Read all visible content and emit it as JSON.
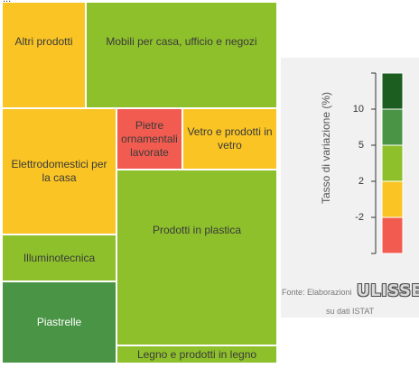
{
  "chart_data": {
    "type": "treemap",
    "legend": {
      "title": "Tasso di variazione (%)",
      "ticks": [
        "10",
        "5",
        "2",
        "-2"
      ],
      "bands": [
        {
          "color": "#1b5e20"
        },
        {
          "color": "#4a9445"
        },
        {
          "color": "#8ec02c"
        },
        {
          "color": "#f9c424"
        },
        {
          "color": "#f25c50"
        }
      ]
    },
    "tiles": [
      {
        "label": "Altri prodotti",
        "color": "#f9c424"
      },
      {
        "label": "Mobili per casa, ufficio e negozi",
        "color": "#8ec02c"
      },
      {
        "label": "Elettrodomestici per la casa",
        "color": "#f9c424"
      },
      {
        "label": "Pietre ornamentali lavorate",
        "color": "#f25c50"
      },
      {
        "label": "Vetro e prodotti in vetro",
        "color": "#f9c424"
      },
      {
        "label": "Prodotti in plastica",
        "color": "#8ec02c"
      },
      {
        "label": "Illuminotecnica",
        "color": "#8ec02c"
      },
      {
        "label": "Piastrelle",
        "color": "#4a9445"
      },
      {
        "label": "Legno e prodotti in legno",
        "color": "#8ec02c"
      }
    ]
  },
  "top_cut_text": "...",
  "source": {
    "prefix": "Fonte: Elaborazioni",
    "logo": "ULISSE",
    "suffix": "su dati ISTAT"
  }
}
